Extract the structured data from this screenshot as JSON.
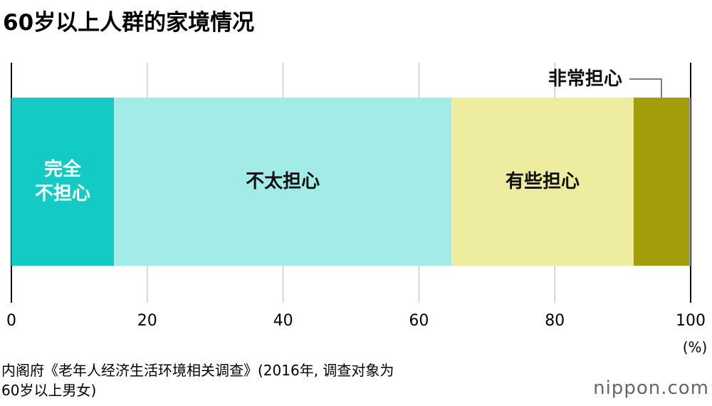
{
  "chart_data": {
    "type": "stacked-bar-horizontal",
    "title": "60岁以上人群的家境情况",
    "series": [
      {
        "name": "完全\n不担心",
        "color": "#13cbc4",
        "values": [
          15.1
        ]
      },
      {
        "name": "不太担心",
        "color": "#a2ebe6",
        "values": [
          49.7
        ]
      },
      {
        "name": "有些担心",
        "color": "#eeed9f",
        "values": [
          26.8
        ]
      },
      {
        "name": "非常担心",
        "color": "#a19e0a",
        "values": [
          8.2
        ]
      },
      {
        "name": null,
        "color": "#9a9a9a",
        "values": [
          0.2
        ]
      }
    ],
    "xlim": [
      0,
      100
    ],
    "xticks": [
      0,
      20,
      40,
      60,
      80,
      100
    ],
    "grid": true,
    "x_unit": "(%)",
    "source": "内阁府《老年人经济生活环境相关调查》(2016年, 调查对象为\n60岁以上男女)",
    "logo": "nippon.com"
  }
}
